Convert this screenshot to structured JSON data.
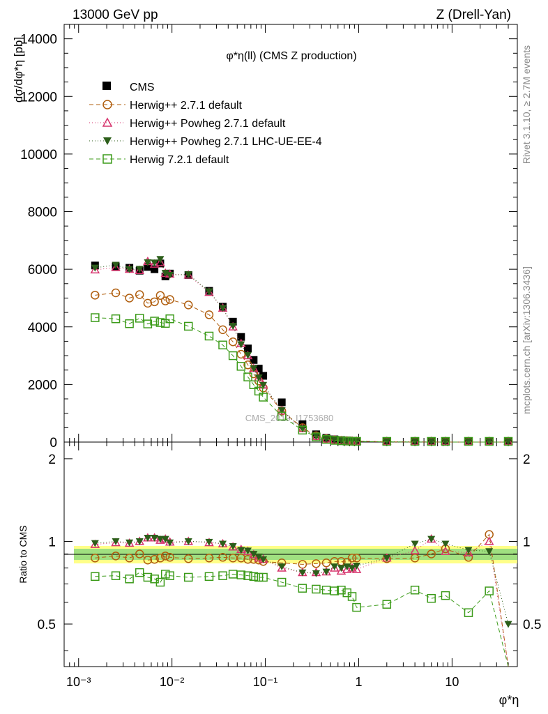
{
  "header": {
    "left": "13000 GeV pp",
    "right": "Z (Drell-Yan)",
    "side_top": "Rivet 3.1.10, ≥ 2.7M events",
    "side_bottom": "mcplots.cern.ch [arXiv:1306.3436]"
  },
  "chart_data": {
    "type": "line",
    "title": "φ*η(ll) (CMS Z production)",
    "watermark": "CMS_2019_I1753680",
    "x_scale": "log",
    "xlim": [
      0.0007,
      50
    ],
    "x_ticks": [
      0.001,
      0.01,
      0.1,
      1,
      10
    ],
    "x_tick_labels": [
      "10⁻³",
      "10⁻²",
      "10⁻¹",
      "1",
      "10"
    ],
    "xlabel": "φ*η",
    "ylabel": "dσ/dφ*η [pb]",
    "main": {
      "ylim": [
        0,
        14500
      ],
      "y_ticks": [
        0,
        2000,
        4000,
        6000,
        8000,
        10000,
        12000,
        14000
      ],
      "y_tick_labels": [
        "0",
        "2000",
        "4000",
        "6000",
        "8000",
        "10000",
        "12000",
        "14000"
      ]
    },
    "ratio": {
      "ylabel": "Ratio to CMS",
      "ylim": [
        0.35,
        2.3
      ],
      "scale": "log",
      "y_ticks": [
        0.5,
        1,
        2
      ],
      "y_tick_labels": [
        "0.5",
        "1",
        "2"
      ]
    },
    "legend_position": "top-left",
    "x": [
      0.0015,
      0.0025,
      0.0035,
      0.0045,
      0.0055,
      0.0065,
      0.0075,
      0.0085,
      0.0095,
      0.015,
      0.025,
      0.035,
      0.045,
      0.055,
      0.065,
      0.075,
      0.085,
      0.095,
      0.15,
      0.25,
      0.35,
      0.45,
      0.55,
      0.65,
      0.75,
      0.85,
      0.95,
      2,
      4,
      6,
      8.5,
      15,
      25,
      40
    ],
    "series": [
      {
        "name": "CMS",
        "color": "#000000",
        "marker": "square-filled",
        "values": [
          6130,
          6100,
          6050,
          5950,
          6080,
          6000,
          6200,
          5750,
          5850,
          5800,
          5250,
          4700,
          4180,
          3650,
          3250,
          2850,
          2550,
          2300,
          1380,
          620,
          270,
          145,
          95,
          70,
          55,
          45,
          38,
          10,
          4,
          2,
          1.2,
          0.6,
          0.4,
          0.1
        ]
      },
      {
        "name": "Herwig++ 2.7.1 default",
        "color": "#b05e0e",
        "marker": "circle-open",
        "dash": "6,4",
        "values": [
          5100,
          5180,
          5000,
          5120,
          4820,
          4870,
          5090,
          4900,
          4950,
          4760,
          4420,
          3900,
          3480,
          3050,
          2680,
          2370,
          2120,
          1880,
          1080,
          500,
          220,
          115,
          75,
          56,
          44,
          36,
          31,
          8,
          3,
          1.6,
          1,
          0.5,
          0.3,
          0.05
        ]
      },
      {
        "name": "Herwig++ Powheg 2.7.1 default",
        "color": "#d6336c",
        "marker": "triangle-open",
        "dash": "1,3",
        "values": [
          5980,
          6060,
          6000,
          5960,
          6270,
          6180,
          6230,
          5860,
          5830,
          5800,
          5200,
          4650,
          4000,
          3420,
          3000,
          2560,
          2230,
          1980,
          1080,
          470,
          200,
          110,
          75,
          54,
          44,
          37,
          30,
          8.7,
          3.7,
          2,
          1.1,
          0.55,
          0.4,
          0.05
        ]
      },
      {
        "name": "Herwig++ Powheg 2.7.1 LHC-UE-EE-4",
        "color": "#2c5e1a",
        "marker": "triangle-down-filled",
        "dash": "1,3",
        "values": [
          6050,
          6150,
          6000,
          6010,
          6240,
          6230,
          6350,
          5870,
          5800,
          5820,
          5230,
          4650,
          4030,
          3390,
          3020,
          2560,
          2240,
          1980,
          1100,
          470,
          205,
          112,
          77,
          55,
          44,
          36,
          31,
          8.7,
          3.8,
          2.1,
          1.2,
          0.55,
          0.5,
          0.05
        ]
      },
      {
        "name": "Herwig 7.2.1 default",
        "color": "#3c9b1a",
        "marker": "square-open",
        "dash": "6,4",
        "values": [
          4320,
          4280,
          4110,
          4300,
          4100,
          4200,
          4150,
          4120,
          4280,
          4020,
          3680,
          3370,
          3000,
          2630,
          2260,
          1990,
          1770,
          1560,
          900,
          415,
          180,
          95,
          61,
          45,
          35,
          28,
          22,
          5.9,
          2.7,
          1.25,
          0.78,
          0.33,
          0.27,
          0.05
        ]
      }
    ],
    "ratios": [
      {
        "name": "Herwig++ 2.7.1 default",
        "values": [
          0.87,
          0.885,
          0.87,
          0.9,
          0.855,
          0.86,
          0.87,
          0.885,
          0.875,
          0.865,
          0.87,
          0.875,
          0.87,
          0.87,
          0.86,
          0.86,
          0.855,
          0.845,
          0.835,
          0.825,
          0.83,
          0.835,
          0.845,
          0.845,
          0.84,
          0.87,
          0.87,
          0.865,
          0.87,
          0.9,
          0.94,
          0.875,
          1.06,
          0.28
        ]
      },
      {
        "name": "Herwig++ Powheg 2.7.1 default",
        "values": [
          0.975,
          0.99,
          0.985,
          1.0,
          1.03,
          1.03,
          1.01,
          1.02,
          0.995,
          1.0,
          0.99,
          0.98,
          0.955,
          0.935,
          0.92,
          0.895,
          0.87,
          0.86,
          0.8,
          0.77,
          0.77,
          0.775,
          0.8,
          0.78,
          0.79,
          0.8,
          0.79,
          0.87,
          0.925,
          1.02,
          0.92,
          0.91,
          1.0,
          0.3
        ]
      },
      {
        "name": "Herwig++ Powheg 2.7.1 LHC-UE-EE-4",
        "values": [
          0.985,
          1.0,
          0.99,
          1.0,
          1.03,
          1.03,
          1.02,
          1.02,
          0.99,
          1.0,
          0.995,
          0.98,
          0.96,
          0.93,
          0.925,
          0.9,
          0.88,
          0.86,
          0.81,
          0.77,
          0.765,
          0.775,
          0.81,
          0.8,
          0.81,
          0.8,
          0.815,
          0.87,
          0.98,
          1.02,
          0.98,
          0.93,
          0.92,
          0.5
        ]
      },
      {
        "name": "Herwig 7.2.1 default",
        "values": [
          0.745,
          0.75,
          0.73,
          0.77,
          0.74,
          0.73,
          0.71,
          0.76,
          0.75,
          0.74,
          0.745,
          0.75,
          0.76,
          0.755,
          0.75,
          0.745,
          0.74,
          0.74,
          0.71,
          0.675,
          0.67,
          0.665,
          0.66,
          0.665,
          0.65,
          0.63,
          0.575,
          0.59,
          0.665,
          0.62,
          0.635,
          0.55,
          0.66,
          0.3
        ]
      }
    ]
  }
}
